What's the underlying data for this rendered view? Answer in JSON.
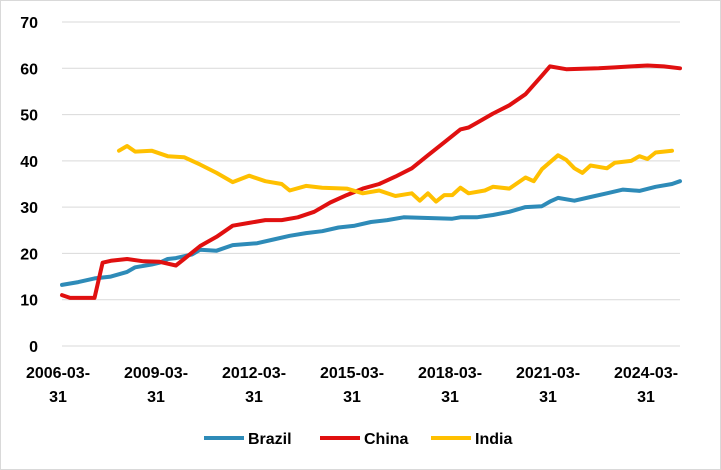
{
  "chart_data": {
    "type": "line",
    "title": "",
    "xlabel": "",
    "ylabel": "",
    "ylim": [
      0,
      70
    ],
    "yticks": [
      0,
      10,
      20,
      30,
      40,
      50,
      60,
      70
    ],
    "grid": "horizontal",
    "legend_position": "bottom",
    "x_tick_labels": [
      {
        "line1": "2006-03-",
        "line2": "31"
      },
      {
        "line1": "2009-03-",
        "line2": "31"
      },
      {
        "line1": "2012-03-",
        "line2": "31"
      },
      {
        "line1": "2015-03-",
        "line2": "31"
      },
      {
        "line1": "2018-03-",
        "line2": "31"
      },
      {
        "line1": "2021-03-",
        "line2": "31"
      },
      {
        "line1": "2024-03-",
        "line2": "31"
      }
    ],
    "x_start": "2006-03-31",
    "x_end": "2025-03-31",
    "series": [
      {
        "name": "Brazil",
        "color": "#2E8BB8",
        "data": [
          [
            "2006-03-31",
            13.2
          ],
          [
            "2006-09-30",
            13.8
          ],
          [
            "2007-03-31",
            14.6
          ],
          [
            "2007-09-30",
            15.0
          ],
          [
            "2008-03-31",
            16.0
          ],
          [
            "2008-06-30",
            17.0
          ],
          [
            "2008-12-31",
            17.6
          ],
          [
            "2009-03-31",
            18.0
          ],
          [
            "2009-06-30",
            18.8
          ],
          [
            "2009-09-30",
            19.0
          ],
          [
            "2010-03-31",
            19.8
          ],
          [
            "2010-06-30",
            20.8
          ],
          [
            "2010-12-31",
            20.6
          ],
          [
            "2011-06-30",
            21.8
          ],
          [
            "2012-03-31",
            22.2
          ],
          [
            "2012-09-30",
            23.0
          ],
          [
            "2013-03-31",
            23.8
          ],
          [
            "2013-09-30",
            24.4
          ],
          [
            "2014-03-31",
            24.8
          ],
          [
            "2014-09-30",
            25.6
          ],
          [
            "2015-03-31",
            26.0
          ],
          [
            "2015-09-30",
            26.8
          ],
          [
            "2016-03-31",
            27.2
          ],
          [
            "2016-09-30",
            27.8
          ],
          [
            "2017-03-31",
            27.7
          ],
          [
            "2017-09-30",
            27.6
          ],
          [
            "2018-03-31",
            27.5
          ],
          [
            "2018-06-30",
            27.8
          ],
          [
            "2018-12-31",
            27.8
          ],
          [
            "2019-06-30",
            28.3
          ],
          [
            "2019-12-31",
            29.0
          ],
          [
            "2020-06-30",
            30.0
          ],
          [
            "2020-12-31",
            30.2
          ],
          [
            "2021-03-31",
            31.2
          ],
          [
            "2021-06-30",
            32.0
          ],
          [
            "2021-12-31",
            31.4
          ],
          [
            "2022-06-30",
            32.2
          ],
          [
            "2022-12-31",
            33.0
          ],
          [
            "2023-06-30",
            33.8
          ],
          [
            "2023-12-31",
            33.5
          ],
          [
            "2024-06-30",
            34.4
          ],
          [
            "2024-12-31",
            35.0
          ],
          [
            "2025-03-31",
            35.6
          ]
        ]
      },
      {
        "name": "China",
        "color": "#E01010",
        "data": [
          [
            "2006-03-31",
            11.0
          ],
          [
            "2006-06-30",
            10.4
          ],
          [
            "2007-03-31",
            10.4
          ],
          [
            "2007-06-30",
            18.0
          ],
          [
            "2007-09-30",
            18.4
          ],
          [
            "2008-03-31",
            18.8
          ],
          [
            "2008-09-30",
            18.3
          ],
          [
            "2009-03-31",
            18.2
          ],
          [
            "2009-09-30",
            17.4
          ],
          [
            "2009-12-31",
            18.8
          ],
          [
            "2010-06-30",
            21.6
          ],
          [
            "2010-12-31",
            23.6
          ],
          [
            "2011-06-30",
            26.0
          ],
          [
            "2011-12-31",
            26.6
          ],
          [
            "2012-06-30",
            27.2
          ],
          [
            "2012-12-31",
            27.2
          ],
          [
            "2013-06-30",
            27.8
          ],
          [
            "2013-12-31",
            29.0
          ],
          [
            "2014-06-30",
            31.0
          ],
          [
            "2014-12-31",
            32.6
          ],
          [
            "2015-06-30",
            34.0
          ],
          [
            "2015-12-31",
            35.0
          ],
          [
            "2016-06-30",
            36.6
          ],
          [
            "2016-12-31",
            38.4
          ],
          [
            "2017-06-30",
            41.2
          ],
          [
            "2017-12-31",
            44.0
          ],
          [
            "2018-06-30",
            46.8
          ],
          [
            "2018-09-30",
            47.2
          ],
          [
            "2018-12-31",
            48.2
          ],
          [
            "2019-06-30",
            50.2
          ],
          [
            "2019-12-31",
            52.0
          ],
          [
            "2020-06-30",
            54.4
          ],
          [
            "2020-12-31",
            58.4
          ],
          [
            "2021-03-31",
            60.4
          ],
          [
            "2021-09-30",
            59.8
          ],
          [
            "2022-03-31",
            59.9
          ],
          [
            "2022-09-30",
            60.0
          ],
          [
            "2023-03-31",
            60.2
          ],
          [
            "2023-09-30",
            60.4
          ],
          [
            "2024-03-31",
            60.6
          ],
          [
            "2024-09-30",
            60.4
          ],
          [
            "2025-03-31",
            60.0
          ]
        ]
      },
      {
        "name": "India",
        "color": "#FFC000",
        "data": [
          [
            "2007-12-31",
            42.2
          ],
          [
            "2008-03-31",
            43.2
          ],
          [
            "2008-06-30",
            42.0
          ],
          [
            "2008-12-31",
            42.2
          ],
          [
            "2009-06-30",
            41.0
          ],
          [
            "2009-12-31",
            40.8
          ],
          [
            "2010-06-30",
            39.2
          ],
          [
            "2010-12-31",
            37.4
          ],
          [
            "2011-06-30",
            35.4
          ],
          [
            "2011-12-31",
            36.8
          ],
          [
            "2012-06-30",
            35.6
          ],
          [
            "2012-12-31",
            35.0
          ],
          [
            "2013-03-31",
            33.6
          ],
          [
            "2013-09-30",
            34.6
          ],
          [
            "2014-03-31",
            34.2
          ],
          [
            "2014-12-31",
            34.0
          ],
          [
            "2015-06-30",
            33.0
          ],
          [
            "2015-12-31",
            33.6
          ],
          [
            "2016-06-30",
            32.4
          ],
          [
            "2016-12-31",
            33.0
          ],
          [
            "2017-03-31",
            31.4
          ],
          [
            "2017-06-30",
            33.0
          ],
          [
            "2017-09-30",
            31.2
          ],
          [
            "2017-12-31",
            32.6
          ],
          [
            "2018-03-31",
            32.6
          ],
          [
            "2018-06-30",
            34.2
          ],
          [
            "2018-09-30",
            33.0
          ],
          [
            "2019-03-31",
            33.6
          ],
          [
            "2019-06-30",
            34.4
          ],
          [
            "2019-12-31",
            34.0
          ],
          [
            "2020-06-30",
            36.4
          ],
          [
            "2020-09-30",
            35.6
          ],
          [
            "2020-12-31",
            38.2
          ],
          [
            "2021-06-30",
            41.2
          ],
          [
            "2021-09-30",
            40.2
          ],
          [
            "2021-12-31",
            38.4
          ],
          [
            "2022-03-31",
            37.4
          ],
          [
            "2022-06-30",
            39.0
          ],
          [
            "2022-12-31",
            38.4
          ],
          [
            "2023-03-31",
            39.6
          ],
          [
            "2023-09-30",
            40.0
          ],
          [
            "2023-12-31",
            41.0
          ],
          [
            "2024-03-31",
            40.4
          ],
          [
            "2024-06-30",
            41.8
          ],
          [
            "2024-12-31",
            42.2
          ]
        ]
      }
    ]
  }
}
